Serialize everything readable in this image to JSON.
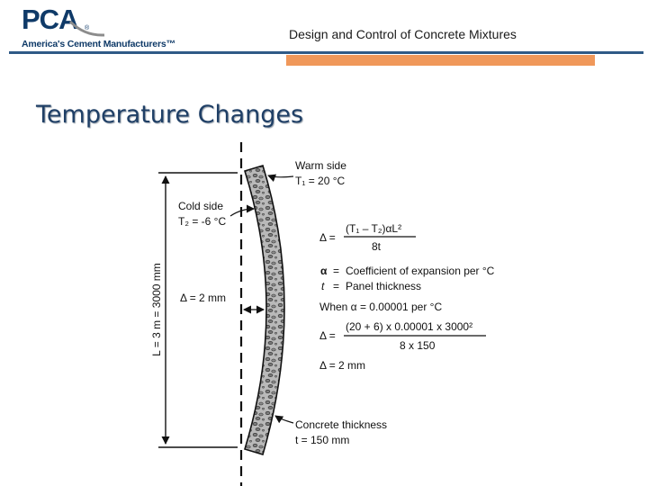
{
  "header": {
    "logo_text": "PCA",
    "logo_registered": "®",
    "logo_tagline": "America's Cement Manufacturers™",
    "title": "Design and Control of Concrete Mixtures"
  },
  "slide": {
    "title": "Temperature Changes"
  },
  "diagram": {
    "warm_side": "Warm side",
    "warm_temp": "T₁ = 20 °C",
    "cold_side": "Cold side",
    "cold_temp": "T₂ = -6 °C",
    "length_label": "L = 3 m = 3000 mm",
    "deflection_label": "Δ = 2 mm",
    "concrete_thickness": "Concrete thickness",
    "thickness_value": "t = 150 mm",
    "formula_lhs": "Δ =",
    "formula_numerator": "(T₁ – T₂)αL²",
    "formula_denominator": "8t",
    "alpha_symbol": "α",
    "alpha_eq": "=",
    "alpha_desc": "Coefficient of expansion per °C",
    "t_symbol": "t",
    "t_eq": "=",
    "t_desc": "Panel thickness",
    "when_text": "When α = 0.00001 per  °C",
    "calc_lhs": "Δ =",
    "calc_numerator": "(20 + 6) x 0.00001 x 3000²",
    "calc_denominator": "8 x 150",
    "result": "Δ = 2 mm"
  }
}
